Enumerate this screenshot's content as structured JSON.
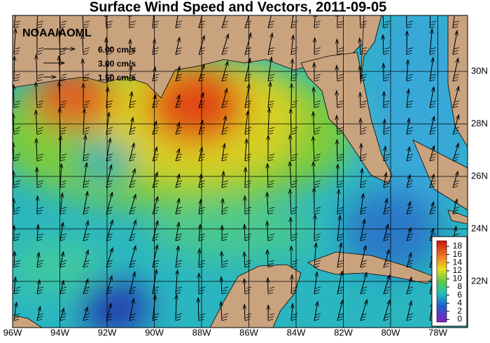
{
  "title": "Surface Wind Speed and Vectors, 2011-09-05",
  "credit": "NOAA/AOML",
  "reference_vectors": [
    "6.00 cm/s",
    "3.00 cm/s",
    "1.50 cm/s"
  ],
  "longitude_labels": [
    "96W",
    "94W",
    "92W",
    "90W",
    "88W",
    "86W",
    "84W",
    "82W",
    "80W",
    "78W"
  ],
  "latitude_labels": [
    "30N",
    "28N",
    "26N",
    "24N",
    "22N"
  ],
  "colorbar_labels": [
    "18",
    "16",
    "14",
    "12",
    "10",
    "8",
    "6",
    "4",
    "2",
    "0"
  ]
}
